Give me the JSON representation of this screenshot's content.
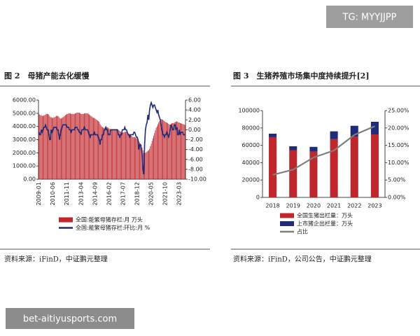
{
  "watermark_top": "TG: MYYJJPP",
  "watermark_bottom": "bet-aitiyusports.com",
  "sources": [
    "资料来源：iFinD，中证鹏元整理",
    "资料来源：iFinD，公司公告，中证鹏元整理"
  ],
  "chart_data": [
    {
      "type": "bar",
      "title": "图 2　母猪产能去化缓慢",
      "legend": "bottom",
      "grid": false,
      "categories": [
        "2009-01",
        null,
        null,
        null,
        null,
        null,
        null,
        null,
        null,
        null,
        null,
        null,
        null,
        null,
        null,
        null,
        null,
        "2010-06",
        null,
        null,
        null,
        null,
        null,
        null,
        null,
        null,
        null,
        null,
        null,
        null,
        null,
        null,
        null,
        null,
        "2011-11",
        null,
        null,
        null,
        null,
        null,
        null,
        null,
        null,
        null,
        null,
        null,
        null,
        null,
        null,
        null,
        null,
        "2013-04",
        null,
        null,
        null,
        null,
        null,
        null,
        null,
        null,
        null,
        null,
        null,
        null,
        null,
        null,
        null,
        null,
        "2014-09",
        null,
        null,
        null,
        null,
        null,
        null,
        null,
        null,
        null,
        null,
        null,
        null,
        null,
        null,
        null,
        null,
        "2016-02",
        null,
        null,
        null,
        null,
        null,
        null,
        null,
        null,
        null,
        null,
        null,
        null,
        null,
        null,
        null,
        null,
        "2017-07",
        null,
        null,
        null,
        null,
        null,
        null,
        null,
        null,
        null,
        null,
        null,
        null,
        null,
        null,
        null,
        null,
        "2018-12",
        null,
        null,
        null,
        null,
        null,
        null,
        null,
        null,
        null,
        null,
        null,
        null,
        null,
        null,
        null,
        null,
        "2020-05",
        null,
        null,
        null,
        null,
        null,
        null,
        null,
        null,
        null,
        null,
        null,
        null,
        null,
        null,
        null,
        null,
        "2021-10",
        null,
        null,
        null,
        null,
        null,
        null,
        null,
        null,
        null,
        null,
        null,
        null,
        null,
        null,
        null,
        null,
        "2023-03",
        null,
        null,
        null,
        null,
        null,
        null,
        null
      ],
      "series": [
        {
          "name": "全国:能繁母猪存栏:月 万头",
          "type": "bar",
          "color": "#c0272d",
          "values": [
            4950,
            4900,
            4850,
            4850,
            4800,
            4800,
            4850,
            4850,
            4900,
            4950,
            4950,
            4950,
            4900,
            4800,
            4700,
            4700,
            4650,
            4650,
            4700,
            4700,
            4750,
            4800,
            4800,
            4800,
            4750,
            4650,
            4600,
            4600,
            4650,
            4700,
            4750,
            4800,
            4850,
            4900,
            4950,
            4950,
            5000,
            5000,
            5000,
            4950,
            4950,
            4950,
            4950,
            4950,
            5000,
            5000,
            5050,
            5050,
            5050,
            5050,
            5000,
            4950,
            4950,
            4950,
            4950,
            5000,
            5000,
            5000,
            5000,
            5000,
            4950,
            4900,
            4850,
            4800,
            4750,
            4700,
            4650,
            4650,
            4600,
            4550,
            4500,
            4450,
            4400,
            4350,
            4200,
            4100,
            4000,
            3950,
            3900,
            3900,
            3900,
            3950,
            3950,
            3950,
            3900,
            3850,
            3800,
            3800,
            3800,
            3800,
            3800,
            3800,
            3800,
            3800,
            3800,
            3800,
            3750,
            3700,
            3650,
            3600,
            3550,
            3550,
            3550,
            3550,
            3600,
            3600,
            3600,
            3550,
            3500,
            3450,
            3400,
            3350,
            3300,
            3250,
            3200,
            3200,
            3200,
            3150,
            3100,
            3100,
            3050,
            2900,
            2800,
            2700,
            2600,
            2400,
            2200,
            2000,
            1950,
            2000,
            2050,
            2100,
            2150,
            2200,
            2300,
            2500,
            2700,
            2900,
            3100,
            3300,
            3500,
            3700,
            3900,
            4000,
            4150,
            4300,
            4400,
            4500,
            4550,
            4550,
            4500,
            4450,
            4400,
            4350,
            4300,
            4300,
            4250,
            4200,
            4150,
            4150,
            4200,
            4250,
            4250,
            4250,
            4300,
            4350,
            4350,
            4400,
            4350,
            4300,
            4300,
            4250,
            4250,
            4200,
            4200,
            4150,
            4150,
            4100
          ]
        },
        {
          "name": "全国:能繁母猪存栏:环比:月 %",
          "type": "line",
          "axis": "y2",
          "color": "#1f2a7a",
          "values": [
            -0.5,
            -1,
            -1,
            0,
            -0.5,
            0,
            0.5,
            0.5,
            1,
            0.5,
            0,
            0,
            -1,
            -2,
            -2,
            0,
            -0.5,
            0,
            0.5,
            0.5,
            0.5,
            0.5,
            0,
            0,
            -1,
            -2,
            -1,
            0,
            0.5,
            1,
            1,
            1,
            1,
            1,
            0.5,
            0.5,
            0.5,
            0,
            0,
            -0.5,
            0,
            0,
            0,
            0,
            0.5,
            0.5,
            0.5,
            0,
            0,
            -0.5,
            -0.5,
            -1,
            0,
            0,
            0,
            0.5,
            0,
            0,
            0,
            0,
            -0.5,
            -1,
            -1.5,
            -1,
            -1,
            -1,
            -1,
            -0.5,
            -1,
            -1,
            -1,
            -1,
            -1.5,
            -2,
            -3,
            -2,
            -2,
            -1,
            -1,
            0,
            0,
            0.5,
            0,
            0,
            -1,
            -1,
            -1,
            0,
            0,
            0,
            0,
            0,
            0,
            0,
            0,
            0,
            -1,
            -1,
            -1.5,
            -1,
            -1,
            0,
            0,
            0,
            0.5,
            0,
            0,
            -0.5,
            -1,
            -1,
            -1.5,
            -1,
            -1,
            -1,
            -1,
            -0.5,
            -0.5,
            -1,
            -1.5,
            -1.5,
            -2,
            -4,
            -3,
            -3,
            -4,
            -5,
            -8,
            -9,
            -3,
            0,
            1,
            1.5,
            3,
            2,
            4,
            5,
            5.5,
            5,
            4.5,
            5,
            5,
            4.5,
            4,
            3.5,
            4,
            3,
            2.5,
            2,
            1,
            0,
            -1,
            -1,
            -1.5,
            -1,
            -1,
            -0.5,
            -1,
            -1.5,
            -1,
            0,
            1,
            0.5,
            0,
            0,
            1,
            1,
            0,
            0.5,
            -1,
            -1,
            0,
            -1,
            -0.5,
            -0.5,
            -0.5,
            -1,
            -1,
            -1
          ]
        }
      ],
      "ylim": [
        0,
        6000
      ],
      "yticks": [
        {
          "value": 0,
          "label": "0.00"
        },
        {
          "value": 1000,
          "label": "1000.00"
        },
        {
          "value": 2000,
          "label": "2000.00"
        },
        {
          "value": 3000,
          "label": "3000.00"
        },
        {
          "value": 4000,
          "label": "4000.00"
        },
        {
          "value": 5000,
          "label": "5000.00"
        },
        {
          "value": 6000,
          "label": "6000.00"
        }
      ],
      "y2lim": [
        -10,
        6
      ],
      "y2ticks": [
        {
          "value": -10,
          "label": "-10.00"
        },
        {
          "value": -8,
          "label": "-8.00"
        },
        {
          "value": -6,
          "label": "-6.00"
        },
        {
          "value": -4,
          "label": "-4.00"
        },
        {
          "value": -2,
          "label": "-2.00"
        },
        {
          "value": 0,
          "label": "0.00"
        },
        {
          "value": 2,
          "label": "2.00"
        },
        {
          "value": 4,
          "label": "4.00"
        },
        {
          "value": 6,
          "label": "6.00"
        }
      ]
    },
    {
      "type": "bar",
      "title": "图 3　生猪养殖市场集中度持续提升[2]",
      "legend": "bottom",
      "grid": false,
      "stacked": true,
      "categories": [
        "2018",
        "2019",
        "2020",
        "2021",
        "2022",
        "2023"
      ],
      "series": [
        {
          "name": "全国生猪出栏量：万头",
          "type": "bar",
          "color": "#c0272d",
          "values": [
            69400,
            54400,
            52700,
            67100,
            70000,
            72600
          ]
        },
        {
          "name": "上市猪企出栏量：万头",
          "type": "bar",
          "color": "#1f2a7a",
          "values": [
            4000,
            4500,
            5500,
            9000,
            12500,
            14500
          ]
        },
        {
          "name": "占比",
          "type": "line",
          "axis": "y2",
          "color": "#7f7f7f",
          "values": [
            6.5,
            8,
            11.5,
            13.5,
            18,
            20.5
          ]
        }
      ],
      "ylim": [
        0,
        100000
      ],
      "yticks": [
        0,
        20000,
        40000,
        60000,
        80000,
        100000
      ],
      "y2lim": [
        0,
        25
      ],
      "y2ticks": [
        {
          "value": 0,
          "label": "0.00%"
        },
        {
          "value": 5,
          "label": "5.00%"
        },
        {
          "value": 10,
          "label": "10.00%"
        },
        {
          "value": 15,
          "label": "15.00%"
        },
        {
          "value": 20,
          "label": "20.00%"
        },
        {
          "value": 25,
          "label": "25.00%"
        }
      ]
    }
  ]
}
